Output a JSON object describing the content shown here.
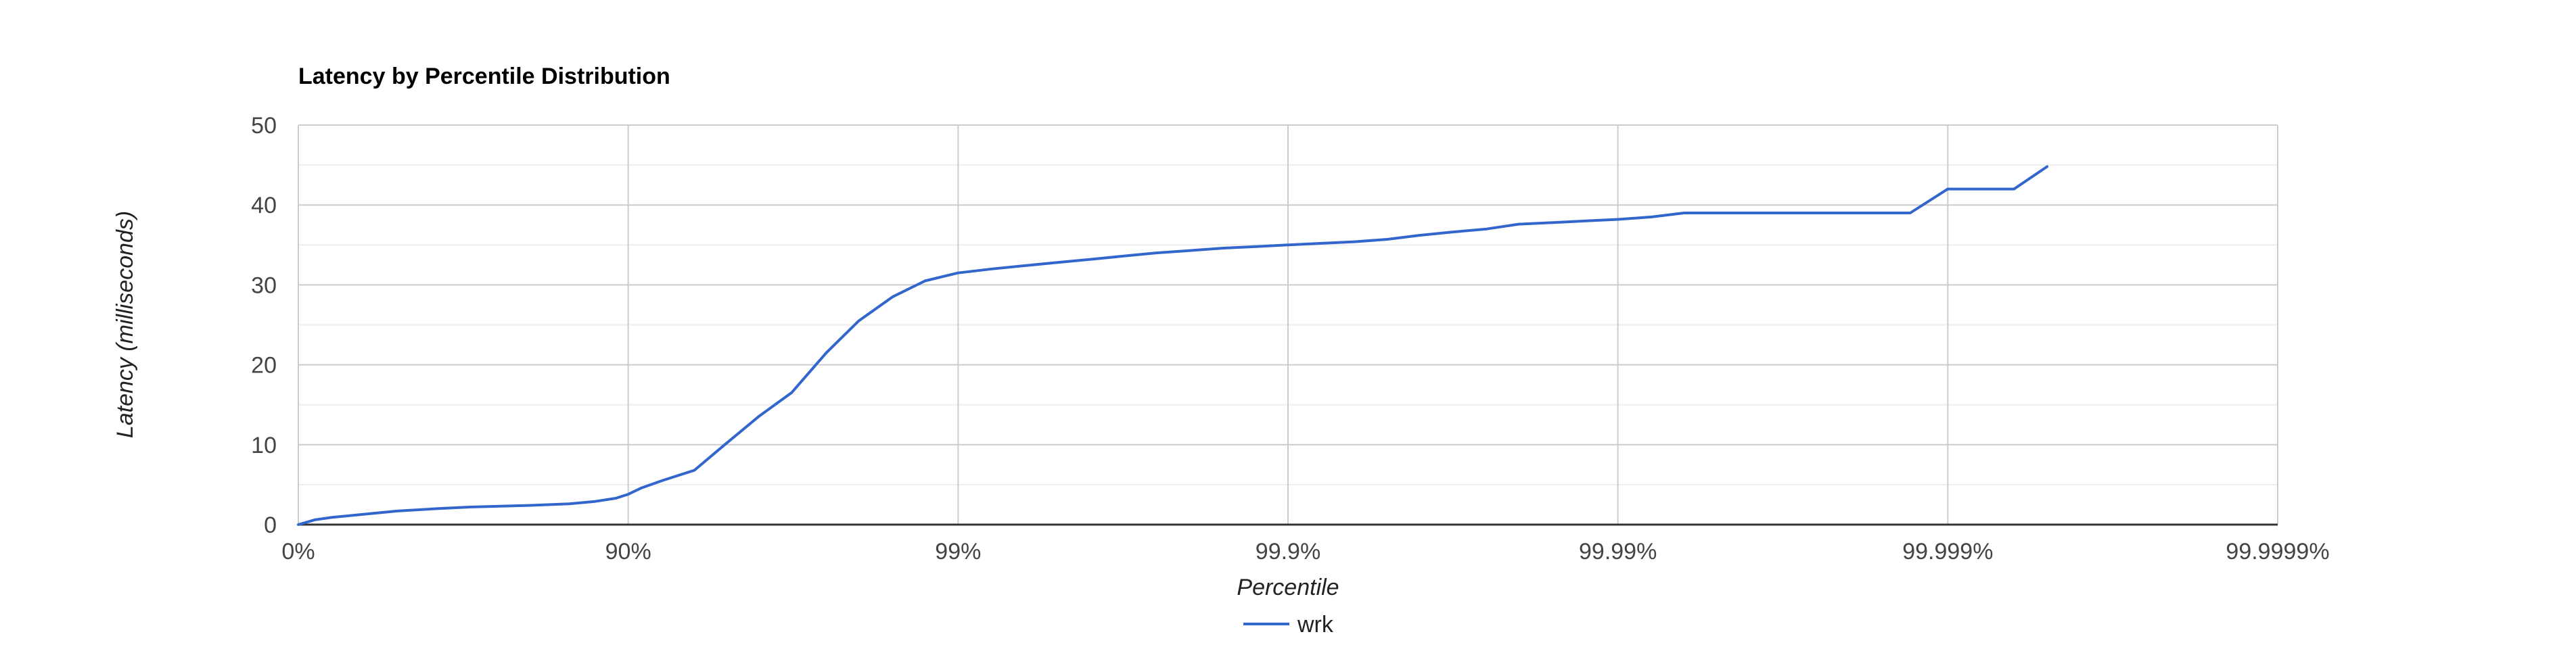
{
  "chart_data": {
    "type": "line",
    "title": "Latency by Percentile Distribution",
    "xlabel": "Percentile",
    "ylabel": "Latency (milliseconds)",
    "x_scale": "log-of-inverse-percentile",
    "x_ticks": [
      "0%",
      "90%",
      "99%",
      "99.9%",
      "99.99%",
      "99.999%",
      "99.9999%"
    ],
    "x_tick_percentiles": [
      0,
      90,
      99,
      99.9,
      99.99,
      99.999,
      99.9999
    ],
    "ylim": [
      0,
      50
    ],
    "y_ticks": [
      "0",
      "10",
      "20",
      "30",
      "40",
      "50"
    ],
    "y_tick_values": [
      0,
      10,
      20,
      30,
      40,
      50
    ],
    "grid": true,
    "legend_position": "bottom",
    "series": [
      {
        "name": "wrk",
        "color": "#3366cc",
        "x": [
          0,
          10.9,
          20.6,
          36.9,
          49.9,
          62.0,
          69.8,
          80.0,
          84.9,
          87.4,
          89.1,
          90.0,
          90.9,
          92.1,
          93.7,
          94.9,
          96.0,
          96.8,
          97.49,
          98.0,
          98.42,
          98.74,
          99.0,
          99.21,
          99.37,
          99.5,
          99.603,
          99.685,
          99.749,
          99.802,
          99.843,
          99.875,
          99.9,
          99.921,
          99.937,
          99.95,
          99.96,
          99.968,
          99.975,
          99.98,
          99.9843,
          99.9875,
          99.99,
          99.9921,
          99.9937,
          99.995,
          99.996,
          99.9968,
          99.9975,
          99.998,
          99.9984,
          99.9987,
          99.999,
          99.99921,
          99.99937,
          99.9995
        ],
        "values": [
          0.0,
          0.6,
          0.9,
          1.3,
          1.7,
          2.0,
          2.2,
          2.4,
          2.6,
          2.9,
          3.3,
          3.8,
          4.6,
          5.5,
          6.8,
          10.0,
          13.6,
          16.5,
          21.5,
          25.5,
          28.5,
          30.5,
          31.5,
          32.0,
          32.4,
          32.8,
          33.2,
          33.6,
          34.0,
          34.3,
          34.6,
          34.8,
          35.0,
          35.2,
          35.4,
          35.7,
          36.2,
          36.6,
          37.0,
          37.6,
          37.8,
          38.0,
          38.2,
          38.5,
          39.0,
          39.0,
          39.0,
          39.0,
          39.0,
          39.0,
          39.0,
          39.0,
          42.0,
          42.0,
          42.0,
          44.8
        ]
      }
    ]
  }
}
